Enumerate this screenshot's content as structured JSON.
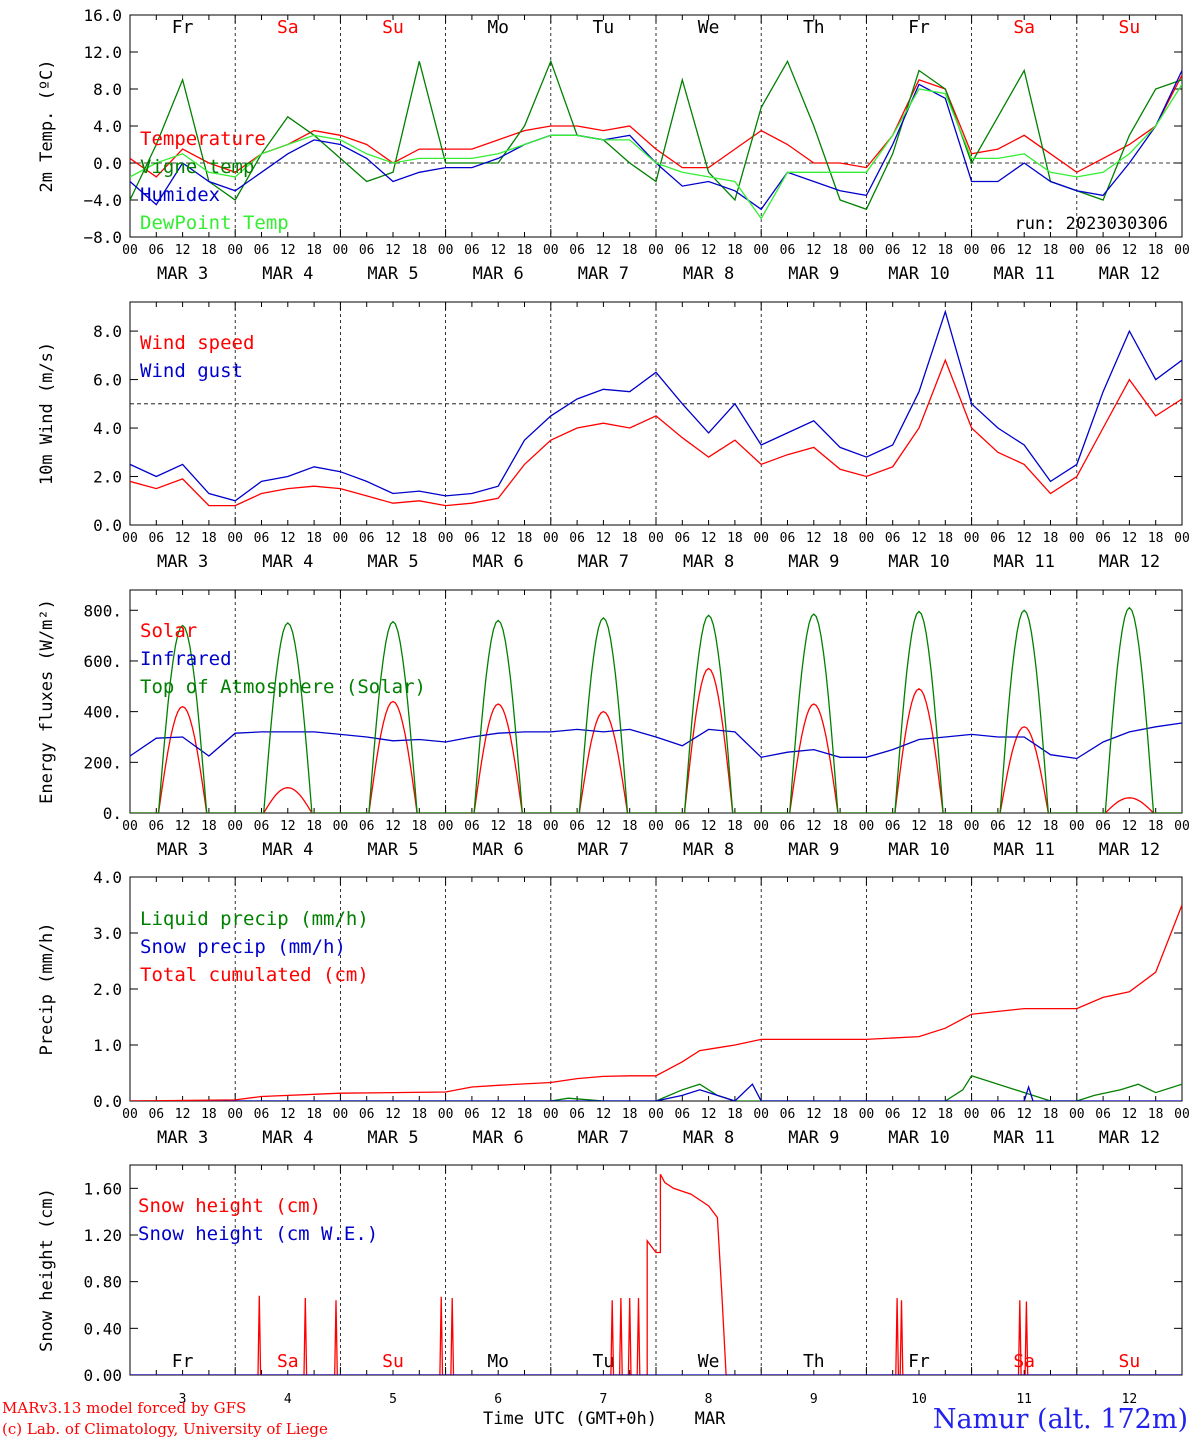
{
  "x_axis": {
    "hours": [
      "00",
      "06",
      "12",
      "18"
    ],
    "end_hour": "00",
    "days": [
      "MAR   3",
      "MAR   4",
      "MAR   5",
      "MAR   6",
      "MAR   7",
      "MAR   8",
      "MAR   9",
      "MAR  10",
      "MAR  11",
      "MAR  12"
    ],
    "weekdays": [
      "Fr",
      "Sa",
      "Su",
      "Mo",
      "Tu",
      "We",
      "Th",
      "Fr",
      "Sa",
      "Su"
    ],
    "weekday_colors": [
      "#000000",
      "#ff0000",
      "#ff0000",
      "#000000",
      "#000000",
      "#000000",
      "#000000",
      "#000000",
      "#ff0000",
      "#ff0000"
    ],
    "bottom_days": [
      "3",
      "4",
      "5",
      "6",
      "7",
      "8",
      "9",
      "10",
      "11",
      "12"
    ],
    "bottom_label": "Time UTC (GMT+0h)",
    "bottom_month": "MAR"
  },
  "footer": {
    "credit_line1": "MARv3.13 model forced by GFS",
    "credit_line2": "(c) Lab. of Climatology, University of Liege",
    "station": "Namur (alt. 172m)"
  },
  "chart_data": [
    {
      "type": "line",
      "ylabel": "2m Temp. (ºC)",
      "ylim": [
        -8,
        16
      ],
      "yticks": [
        "16.0",
        "12.0",
        "8.0",
        "4.0",
        "0.0",
        "−4.0",
        "−8.0"
      ],
      "reference_line": 0,
      "annotation": "run: 2023030306",
      "x_unit": "hours since MAR 3 00 UTC",
      "series": [
        {
          "name": "Temperature",
          "color": "#ff0000",
          "x": [
            0,
            6,
            12,
            18,
            24,
            30,
            36,
            42,
            48,
            54,
            60,
            66,
            72,
            78,
            84,
            90,
            96,
            102,
            108,
            114,
            120,
            126,
            132,
            138,
            144,
            150,
            156,
            162,
            168,
            174,
            180,
            186,
            192,
            198,
            204,
            210,
            216,
            222,
            228,
            234,
            240
          ],
          "y": [
            0.5,
            -1.5,
            1.5,
            0,
            -1,
            1,
            2,
            3.5,
            3,
            2,
            0,
            1.5,
            1.5,
            1.5,
            2.5,
            3.5,
            4,
            4,
            3.5,
            4,
            1.5,
            -0.5,
            -0.5,
            1.5,
            3.5,
            2,
            0,
            0,
            -0.5,
            3,
            9,
            8,
            1,
            1.5,
            3,
            1,
            -1,
            0.5,
            2,
            4,
            9.5
          ]
        },
        {
          "name": "Vigne temp",
          "color": "#008000",
          "x": [
            0,
            6,
            12,
            18,
            24,
            30,
            36,
            42,
            48,
            54,
            60,
            66,
            72,
            78,
            84,
            90,
            96,
            102,
            108,
            114,
            120,
            126,
            132,
            138,
            144,
            150,
            156,
            162,
            168,
            174,
            180,
            186,
            192,
            198,
            204,
            210,
            216,
            222,
            228,
            234,
            240
          ],
          "y": [
            -4,
            2,
            9,
            -2,
            -4,
            1,
            5,
            3,
            0.5,
            -2,
            -1,
            11,
            0,
            0,
            0,
            4,
            11,
            3,
            2.5,
            0,
            -2,
            9,
            -1,
            -4,
            6,
            11,
            4,
            -4,
            -5,
            1,
            10,
            8,
            0,
            5,
            10,
            -2,
            -3,
            -4,
            3,
            8,
            9
          ]
        },
        {
          "name": "Humidex",
          "color": "#0000cc",
          "x": [
            0,
            6,
            12,
            18,
            24,
            30,
            36,
            42,
            48,
            54,
            60,
            66,
            72,
            78,
            84,
            90,
            96,
            102,
            108,
            114,
            120,
            126,
            132,
            138,
            144,
            150,
            156,
            162,
            168,
            174,
            180,
            186,
            192,
            198,
            204,
            210,
            216,
            222,
            228,
            234,
            240
          ],
          "y": [
            -2,
            -4.5,
            0,
            -2,
            -3,
            -1,
            1,
            2.5,
            2,
            0.5,
            -2,
            -1,
            -0.5,
            -0.5,
            0.5,
            2,
            3,
            3,
            2.5,
            3,
            0,
            -2.5,
            -2,
            -3,
            -5,
            -1,
            -2,
            -3,
            -3.5,
            2,
            8.5,
            7,
            -2,
            -2,
            0,
            -2,
            -3,
            -3.5,
            0,
            4,
            10
          ]
        },
        {
          "name": "DewPoint Temp",
          "color": "#33ee33",
          "x": [
            0,
            6,
            12,
            18,
            24,
            30,
            36,
            42,
            48,
            54,
            60,
            66,
            72,
            78,
            84,
            90,
            96,
            102,
            108,
            114,
            120,
            126,
            132,
            138,
            144,
            150,
            156,
            162,
            168,
            174,
            180,
            186,
            192,
            198,
            204,
            210,
            216,
            222,
            228,
            234,
            240
          ],
          "y": [
            -1.5,
            0,
            1,
            -1,
            -1.5,
            1,
            2,
            3,
            2.5,
            1,
            0,
            0.5,
            0.5,
            0.5,
            1,
            2,
            3,
            3,
            2.5,
            2.5,
            0,
            -1,
            -1.5,
            -2,
            -6,
            -1,
            -1,
            -1,
            -1,
            3,
            8,
            7.5,
            0.5,
            0.5,
            1,
            -1,
            -1.5,
            -1,
            1,
            4,
            8.5
          ]
        }
      ]
    },
    {
      "type": "line",
      "ylabel": "10m Wind (m/s)",
      "ylim": [
        0,
        9.2
      ],
      "yticks": [
        "8.0",
        "6.0",
        "4.0",
        "2.0",
        "0.0"
      ],
      "reference_line": 5,
      "x_unit": "hours since MAR 3 00 UTC",
      "series": [
        {
          "name": "Wind speed",
          "color": "#ff0000",
          "x": [
            0,
            6,
            12,
            18,
            24,
            30,
            36,
            42,
            48,
            54,
            60,
            66,
            72,
            78,
            84,
            90,
            96,
            102,
            108,
            114,
            120,
            126,
            132,
            138,
            144,
            150,
            156,
            162,
            168,
            174,
            180,
            186,
            192,
            198,
            204,
            210,
            216,
            222,
            228,
            234,
            240
          ],
          "y": [
            1.8,
            1.5,
            1.9,
            0.8,
            0.8,
            1.3,
            1.5,
            1.6,
            1.5,
            1.2,
            0.9,
            1.0,
            0.8,
            0.9,
            1.1,
            2.5,
            3.5,
            4,
            4.2,
            4,
            4.5,
            3.6,
            2.8,
            3.5,
            2.5,
            2.9,
            3.2,
            2.3,
            2,
            2.4,
            4,
            6.8,
            4,
            3,
            2.5,
            1.3,
            2,
            4,
            6,
            4.5,
            5.2
          ]
        },
        {
          "name": "Wind gust",
          "color": "#0000cc",
          "x": [
            0,
            6,
            12,
            18,
            24,
            30,
            36,
            42,
            48,
            54,
            60,
            66,
            72,
            78,
            84,
            90,
            96,
            102,
            108,
            114,
            120,
            126,
            132,
            138,
            144,
            150,
            156,
            162,
            168,
            174,
            180,
            186,
            192,
            198,
            204,
            210,
            216,
            222,
            228,
            234,
            240
          ],
          "y": [
            2.5,
            2,
            2.5,
            1.3,
            1,
            1.8,
            2,
            2.4,
            2.2,
            1.8,
            1.3,
            1.4,
            1.2,
            1.3,
            1.6,
            3.5,
            4.5,
            5.2,
            5.6,
            5.5,
            6.3,
            5,
            3.8,
            5,
            3.3,
            3.8,
            4.3,
            3.2,
            2.8,
            3.3,
            5.5,
            8.8,
            5,
            4,
            3.3,
            1.8,
            2.5,
            5.5,
            8,
            6,
            6.8
          ]
        }
      ]
    },
    {
      "type": "line",
      "ylabel": "Energy fluxes (W/m²)",
      "ylim": [
        0,
        880
      ],
      "yticks": [
        "800.",
        "600.",
        "400.",
        "200.",
        "0."
      ],
      "x_unit": "hours since MAR 3 00 UTC",
      "series": [
        {
          "name": "Solar",
          "color": "#ff0000",
          "day_peaks": [
            420,
            100,
            440,
            430,
            400,
            570,
            430,
            490,
            340,
            60
          ]
        },
        {
          "name": "Infrared",
          "color": "#0000cc",
          "x": [
            0,
            6,
            12,
            18,
            24,
            30,
            36,
            42,
            48,
            54,
            60,
            66,
            72,
            78,
            84,
            90,
            96,
            102,
            108,
            114,
            120,
            126,
            132,
            138,
            144,
            150,
            156,
            162,
            168,
            174,
            180,
            186,
            192,
            198,
            204,
            210,
            216,
            222,
            228,
            234,
            240
          ],
          "y": [
            225,
            295,
            300,
            225,
            315,
            320,
            320,
            320,
            310,
            300,
            285,
            290,
            280,
            300,
            315,
            320,
            320,
            330,
            320,
            330,
            300,
            265,
            330,
            320,
            220,
            240,
            250,
            220,
            220,
            250,
            290,
            300,
            310,
            300,
            300,
            230,
            215,
            280,
            320,
            340,
            355
          ]
        },
        {
          "name": "Top of Atmosphere (Solar)",
          "color": "#008000",
          "day_peaks": [
            740,
            750,
            755,
            760,
            770,
            780,
            785,
            795,
            800,
            810
          ]
        }
      ]
    },
    {
      "type": "line",
      "ylabel": "Precip (mm/h)",
      "ylim": [
        0,
        4
      ],
      "yticks": [
        "4.0",
        "3.0",
        "2.0",
        "1.0",
        "0.0"
      ],
      "x_unit": "hours since MAR 3 00 UTC",
      "series": [
        {
          "name": "Liquid precip (mm/h)",
          "color": "#008000",
          "x": [
            0,
            96,
            100,
            108,
            120,
            126,
            130,
            134,
            138,
            144,
            186,
            190,
            192,
            210,
            216,
            220,
            226,
            230,
            234,
            240
          ],
          "y": [
            0,
            0,
            0.05,
            0,
            0,
            0.2,
            0.3,
            0.1,
            0,
            0,
            0,
            0.2,
            0.45,
            0,
            0,
            0.1,
            0.2,
            0.3,
            0.15,
            0.3
          ]
        },
        {
          "name": "Snow precip (mm/h)",
          "color": "#0000cc",
          "x": [
            0,
            120,
            126,
            130,
            134,
            138,
            142,
            144,
            168,
            192,
            204,
            205,
            206,
            240
          ],
          "y": [
            0,
            0,
            0.1,
            0.2,
            0.1,
            0,
            0.3,
            0,
            0,
            0,
            0,
            0.25,
            0,
            0
          ]
        },
        {
          "name": "Total cumulated (cm)",
          "color": "#ff0000",
          "x": [
            0,
            24,
            30,
            48,
            60,
            72,
            78,
            84,
            96,
            102,
            108,
            114,
            120,
            126,
            130,
            134,
            138,
            144,
            150,
            168,
            180,
            186,
            192,
            204,
            216,
            210,
            216,
            222,
            228,
            234,
            240
          ],
          "y": [
            0,
            0.02,
            0.08,
            0.14,
            0.15,
            0.16,
            0.25,
            0.28,
            0.33,
            0.4,
            0.44,
            0.45,
            0.45,
            0.7,
            0.9,
            0.95,
            1.0,
            1.1,
            1.1,
            1.1,
            1.15,
            1.3,
            1.55,
            1.65,
            1.65,
            1.65,
            1.65,
            1.85,
            1.95,
            2.3,
            3.5
          ]
        }
      ]
    },
    {
      "type": "line",
      "ylabel": "Snow height (cm)",
      "ylim": [
        0,
        1.8
      ],
      "yticks": [
        "1.60",
        "1.20",
        "0.80",
        "0.40",
        "0.00"
      ],
      "x_unit": "hours since MAR 3 00 UTC",
      "series": [
        {
          "name": "Snow height (cm)",
          "color": "#ff0000",
          "spikes": [
            [
              29.5,
              0.68
            ],
            [
              40,
              0.66
            ],
            [
              47,
              0.64
            ],
            [
              71,
              0.67
            ],
            [
              73.5,
              0.66
            ],
            [
              110,
              0.64
            ],
            [
              112,
              0.66
            ],
            [
              114,
              0.66
            ],
            [
              116,
              0.66
            ]
          ],
          "x": [
            118,
            118,
            120,
            121,
            121,
            122,
            124,
            128,
            130,
            132,
            134,
            135,
            136
          ],
          "y": [
            0,
            1.15,
            1.05,
            1.05,
            1.72,
            1.65,
            1.6,
            1.55,
            1.5,
            1.45,
            1.35,
            0.7,
            0
          ],
          "spikes_after": [
            [
              175,
              0.66
            ],
            [
              176,
              0.64
            ],
            [
              203,
              0.64
            ],
            [
              204.5,
              0.63
            ]
          ]
        },
        {
          "name": "Snow height (cm W.E.)",
          "color": "#0000cc",
          "x": [
            0,
            240
          ],
          "y": [
            0,
            0
          ]
        }
      ]
    }
  ]
}
